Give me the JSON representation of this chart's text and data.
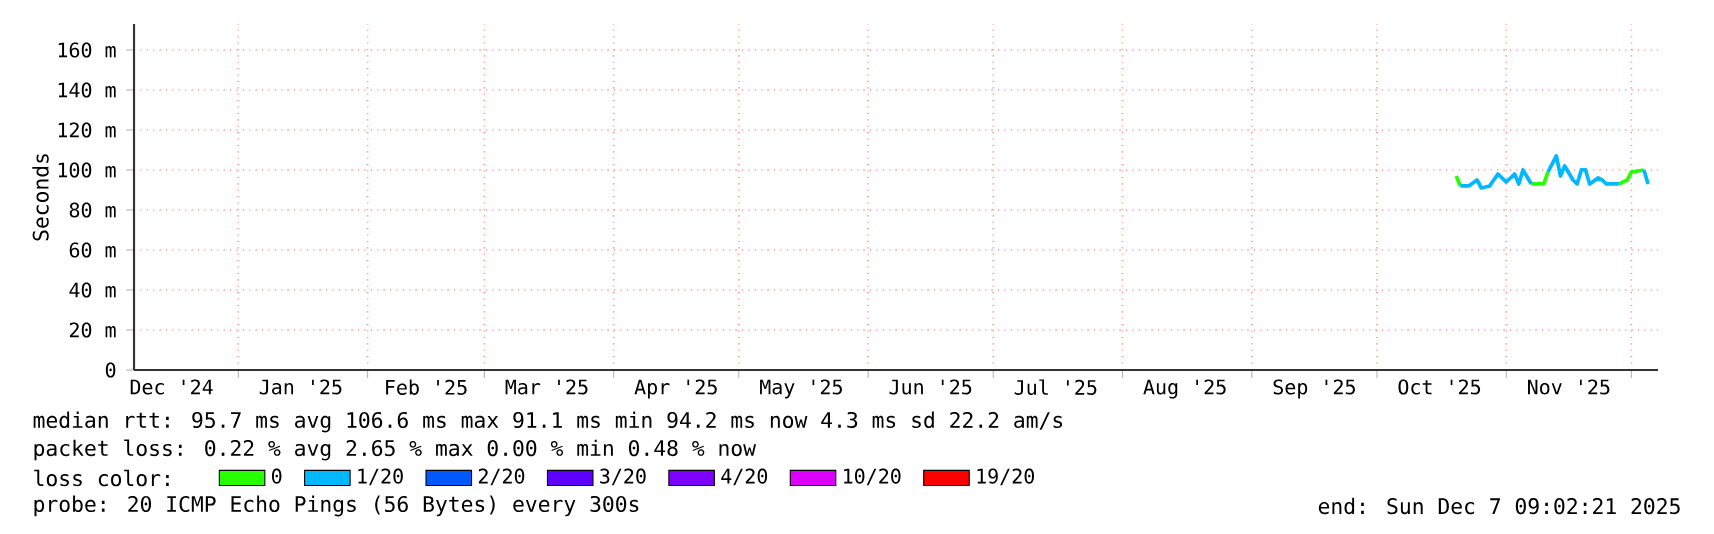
{
  "chart_data": {
    "type": "line",
    "ylabel": "Seconds",
    "legend_title": "loss color:",
    "legend": "bottom",
    "grid": true,
    "xlim": [
      "2024-12-07",
      "2025-12-07T09:02"
    ],
    "ylim": [
      0,
      173
    ],
    "yticks": [
      {
        "value": 0,
        "label": "0"
      },
      {
        "value": 20,
        "label": "20 m"
      },
      {
        "value": 40,
        "label": "40 m"
      },
      {
        "value": 60,
        "label": "60 m"
      },
      {
        "value": 80,
        "label": "80 m"
      },
      {
        "value": 100,
        "label": "100 m"
      },
      {
        "value": 120,
        "label": "120 m"
      },
      {
        "value": 140,
        "label": "140 m"
      },
      {
        "value": 160,
        "label": "160 m"
      }
    ],
    "xticks": [
      {
        "value": "2025-01-01",
        "label": null
      },
      {
        "value": "2025-02-01",
        "label": null
      },
      {
        "value": "2025-03-01",
        "label": null
      },
      {
        "value": "2025-04-01",
        "label": null
      },
      {
        "value": "2025-05-01",
        "label": null
      },
      {
        "value": "2025-06-01",
        "label": null
      },
      {
        "value": "2025-07-01",
        "label": null
      },
      {
        "value": "2025-08-01",
        "label": null
      },
      {
        "value": "2025-09-01",
        "label": null
      },
      {
        "value": "2025-10-01",
        "label": null
      },
      {
        "value": "2025-11-01",
        "label": null
      },
      {
        "value": "2025-12-01",
        "label": null
      },
      {
        "value": "2024-12-16",
        "label": "Dec '24"
      },
      {
        "value": "2025-01-16",
        "label": "Jan '25"
      },
      {
        "value": "2025-02-15",
        "label": "Feb '25"
      },
      {
        "value": "2025-03-16",
        "label": "Mar '25"
      },
      {
        "value": "2025-04-16",
        "label": "Apr '25"
      },
      {
        "value": "2025-05-16",
        "label": "May '25"
      },
      {
        "value": "2025-06-16",
        "label": "Jun '25"
      },
      {
        "value": "2025-07-16",
        "label": "Jul '25"
      },
      {
        "value": "2025-08-16",
        "label": "Aug '25"
      },
      {
        "value": "2025-09-16",
        "label": "Sep '25"
      },
      {
        "value": "2025-10-16",
        "label": "Oct '25"
      },
      {
        "value": "2025-11-16",
        "label": "Nov '25"
      }
    ],
    "x": [
      "2025-10-20",
      "2025-10-21",
      "2025-10-23",
      "2025-10-25",
      "2025-10-26",
      "2025-10-28",
      "2025-10-30",
      "2025-11-01",
      "2025-11-03",
      "2025-11-04",
      "2025-11-05",
      "2025-11-07",
      "2025-11-10",
      "2025-11-11",
      "2025-11-13",
      "2025-11-14",
      "2025-11-15",
      "2025-11-17",
      "2025-11-18",
      "2025-11-19",
      "2025-11-20",
      "2025-11-21",
      "2025-11-23",
      "2025-11-24",
      "2025-11-25",
      "2025-11-28",
      "2025-11-30",
      "2025-12-01",
      "2025-12-04",
      "2025-12-05"
    ],
    "series": [
      {
        "name": "0",
        "color": "#26ff00",
        "values": [
          97,
          92,
          null,
          null,
          null,
          null,
          null,
          null,
          null,
          null,
          null,
          93,
          93,
          99,
          null,
          null,
          null,
          null,
          null,
          null,
          null,
          null,
          null,
          null,
          null,
          93,
          95,
          99,
          100,
          null
        ]
      },
      {
        "name": "1/20",
        "color": "#00b8ff",
        "values": [
          null,
          92,
          92,
          95,
          91,
          92,
          98,
          94,
          98,
          93,
          100,
          93,
          null,
          99,
          107,
          97,
          102,
          95,
          93,
          100,
          100,
          93,
          96,
          95,
          93,
          93,
          null,
          null,
          100,
          93
        ]
      },
      {
        "name": "2/20",
        "color": "#0059ff",
        "values": [
          null,
          null,
          null,
          null,
          null,
          null,
          null,
          null,
          null,
          null,
          null,
          null,
          null,
          null,
          null,
          null,
          null,
          null,
          null,
          null,
          null,
          null,
          null,
          null,
          null,
          null,
          null,
          null,
          null,
          null
        ]
      },
      {
        "name": "3/20",
        "color": "#5e00ff",
        "values": [
          null,
          null,
          null,
          null,
          null,
          null,
          null,
          null,
          null,
          null,
          null,
          null,
          null,
          null,
          null,
          null,
          null,
          null,
          null,
          null,
          null,
          null,
          null,
          null,
          null,
          null,
          null,
          null,
          null,
          null
        ]
      },
      {
        "name": "4/20",
        "color": "#7e00ff",
        "values": [
          null,
          null,
          null,
          null,
          null,
          null,
          null,
          null,
          null,
          null,
          null,
          null,
          null,
          null,
          null,
          null,
          null,
          null,
          null,
          null,
          null,
          null,
          null,
          null,
          null,
          null,
          null,
          null,
          null,
          null
        ]
      },
      {
        "name": "10/20",
        "color": "#dd00ff",
        "values": [
          null,
          null,
          null,
          null,
          null,
          null,
          null,
          null,
          null,
          null,
          null,
          null,
          null,
          null,
          null,
          null,
          null,
          null,
          null,
          null,
          null,
          null,
          null,
          null,
          null,
          null,
          null,
          null,
          null,
          null
        ]
      },
      {
        "name": "19/20",
        "color": "#ff0000",
        "values": [
          null,
          null,
          null,
          null,
          null,
          null,
          null,
          null,
          null,
          null,
          null,
          null,
          null,
          null,
          null,
          null,
          null,
          null,
          null,
          null,
          null,
          null,
          null,
          null,
          null,
          null,
          null,
          null,
          null,
          null
        ]
      }
    ],
    "annotations": [
      "median rtt:  95.7 ms avg  106.6 ms max  91.1 ms min  94.2 ms now  4.3 ms sd  22.2   am/s",
      "packet loss: 0.22 % avg  2.65 % max  0.00 % min  0.48 % now",
      "probe:       20 ICMP Echo Pings (56 Bytes) every 300s",
      "end: Sun Dec  7 09:02:21 2025"
    ]
  }
}
